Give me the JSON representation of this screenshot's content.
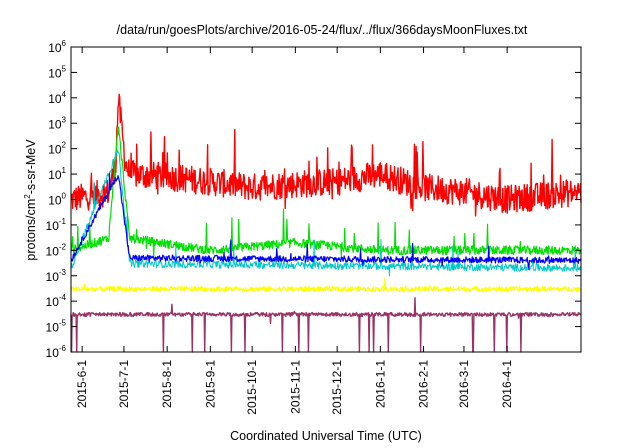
{
  "chart_data": {
    "type": "line",
    "title": "/data/run/goesPlots/archive/2016-05-24/flux/../flux/366daysMoonFluxes.txt",
    "xlabel": "Coordinated Universal Time (UTC)",
    "ylabel": "protons/cm²-s-sr-MeV",
    "ylabel_parts": [
      "protons/cm",
      "2",
      "-s-sr-MeV"
    ],
    "y_scale": "log",
    "ylim": [
      1e-06,
      1000000.0
    ],
    "xlim": [
      "2015-05-24",
      "2016-05-24"
    ],
    "grid": false,
    "legend": "none",
    "y_ticks": [
      {
        "base": "10",
        "exp": "-6",
        "value": 1e-06
      },
      {
        "base": "10",
        "exp": "-5",
        "value": 1e-05
      },
      {
        "base": "10",
        "exp": "-4",
        "value": 0.0001
      },
      {
        "base": "10",
        "exp": "-3",
        "value": 0.001
      },
      {
        "base": "10",
        "exp": "-2",
        "value": 0.01
      },
      {
        "base": "10",
        "exp": "-1",
        "value": 0.1
      },
      {
        "base": "10",
        "exp": "0",
        "value": 1
      },
      {
        "base": "10",
        "exp": "1",
        "value": 10
      },
      {
        "base": "10",
        "exp": "2",
        "value": 100
      },
      {
        "base": "10",
        "exp": "3",
        "value": 1000
      },
      {
        "base": "10",
        "exp": "4",
        "value": 10000
      },
      {
        "base": "10",
        "exp": "5",
        "value": 100000
      },
      {
        "base": "10",
        "exp": "6",
        "value": 1000000
      }
    ],
    "x_ticks": [
      "2015-6-1",
      "2015-7-1",
      "2015-8-1",
      "2015-9-1",
      "2015-10-1",
      "2015-11-1",
      "2015-12-1",
      "2016-1-1",
      "2016-2-1",
      "2016-3-1",
      "2016-4-1"
    ],
    "series": [
      {
        "color": "#ff0000",
        "baseline": 1.5,
        "points": [
          [
            "2015-05-24",
            1.0
          ],
          [
            "2015-06-10",
            1.5
          ],
          [
            "2015-06-20",
            2.0
          ],
          [
            "2015-06-25",
            20
          ],
          [
            "2015-06-27",
            10000
          ],
          [
            "2015-07-02",
            30
          ],
          [
            "2015-07-05",
            10
          ],
          [
            "2015-08-01",
            8
          ],
          [
            "2015-09-01",
            5
          ],
          [
            "2015-10-01",
            3
          ],
          [
            "2015-11-01",
            4
          ],
          [
            "2015-12-01",
            5
          ],
          [
            "2016-01-01",
            10
          ],
          [
            "2016-02-01",
            3
          ],
          [
            "2016-03-01",
            2
          ],
          [
            "2016-04-01",
            1
          ],
          [
            "2016-05-24",
            2
          ]
        ]
      },
      {
        "color": "#00e000",
        "baseline": 0.01,
        "points": [
          [
            "2015-05-24",
            0.01
          ],
          [
            "2015-06-20",
            0.03
          ],
          [
            "2015-06-27",
            800
          ],
          [
            "2015-07-05",
            0.03
          ],
          [
            "2015-09-01",
            0.01
          ],
          [
            "2015-11-01",
            0.02
          ],
          [
            "2016-01-01",
            0.01
          ],
          [
            "2016-05-24",
            0.01
          ]
        ]
      },
      {
        "color": "#00c8c8",
        "baseline": 0.002,
        "points": [
          [
            "2015-05-24",
            0.002
          ],
          [
            "2015-06-27",
            100
          ],
          [
            "2015-07-05",
            0.003
          ],
          [
            "2016-05-24",
            0.002
          ]
        ]
      },
      {
        "color": "#0000ff",
        "baseline": 0.004,
        "points": [
          [
            "2015-05-24",
            0.004
          ],
          [
            "2015-06-27",
            10
          ],
          [
            "2015-07-05",
            0.005
          ],
          [
            "2016-05-24",
            0.004
          ]
        ]
      },
      {
        "color": "#ffff00",
        "baseline": 0.0003,
        "points": [
          [
            "2015-05-24",
            0.0003
          ],
          [
            "2016-05-24",
            0.0003
          ]
        ]
      },
      {
        "color": "#993366",
        "baseline": 3e-05,
        "points": [
          [
            "2015-05-24",
            3e-05
          ],
          [
            "2016-05-24",
            3e-05
          ]
        ]
      }
    ]
  }
}
